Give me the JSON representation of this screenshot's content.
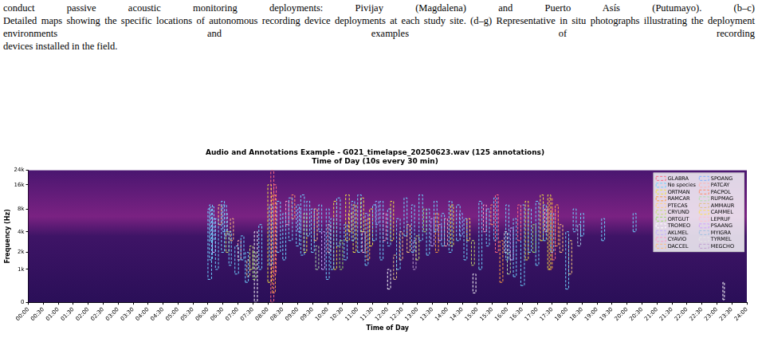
{
  "caption": [
    "conduct passive acoustic monitoring deployments: Pivijay (Magdalena) and Puerto Asís (Putumayo). (b–c)",
    "Detailed maps showing the specific locations of autonomous recording device deployments at each study site. (d–g) Representative in situ photographs illustrating the deployment environments and examples of recording",
    "devices installed in the field."
  ],
  "chart_data": {
    "type": "spectrogram",
    "title": "Audio and Annotations Example - G021_timelapse_20250623.wav (125 annotations)",
    "subtitle": "Time of Day (10s every 30 min)",
    "xlabel": "Time of Day",
    "ylabel": "Frequency (Hz)",
    "xlim": [
      0,
      24
    ],
    "xticks": [
      {
        "value": 0,
        "label": "00:00"
      },
      {
        "value": 0.5,
        "label": "00:30"
      },
      {
        "value": 1,
        "label": "01:00"
      },
      {
        "value": 1.5,
        "label": "01:30"
      },
      {
        "value": 2,
        "label": "02:00"
      },
      {
        "value": 2.5,
        "label": "02:30"
      },
      {
        "value": 3,
        "label": "03:00"
      },
      {
        "value": 3.5,
        "label": "03:30"
      },
      {
        "value": 4,
        "label": "04:00"
      },
      {
        "value": 4.5,
        "label": "04:30"
      },
      {
        "value": 5,
        "label": "05:00"
      },
      {
        "value": 5.5,
        "label": "05:30"
      },
      {
        "value": 6,
        "label": "06:00"
      },
      {
        "value": 6.5,
        "label": "06:30"
      },
      {
        "value": 7,
        "label": "07:00"
      },
      {
        "value": 7.5,
        "label": "07:30"
      },
      {
        "value": 8,
        "label": "08:00"
      },
      {
        "value": 8.5,
        "label": "08:30"
      },
      {
        "value": 9,
        "label": "09:00"
      },
      {
        "value": 9.5,
        "label": "09:30"
      },
      {
        "value": 10,
        "label": "10:00"
      },
      {
        "value": 10.5,
        "label": "10:30"
      },
      {
        "value": 11,
        "label": "11:00"
      },
      {
        "value": 11.5,
        "label": "11:30"
      },
      {
        "value": 12,
        "label": "12:00"
      },
      {
        "value": 12.5,
        "label": "12:30"
      },
      {
        "value": 13,
        "label": "13:00"
      },
      {
        "value": 13.5,
        "label": "13:30"
      },
      {
        "value": 14,
        "label": "14:00"
      },
      {
        "value": 14.5,
        "label": "14:30"
      },
      {
        "value": 15,
        "label": "15:00"
      },
      {
        "value": 15.5,
        "label": "15:30"
      },
      {
        "value": 16,
        "label": "16:00"
      },
      {
        "value": 16.5,
        "label": "16:30"
      },
      {
        "value": 17,
        "label": "17:00"
      },
      {
        "value": 17.5,
        "label": "17:30"
      },
      {
        "value": 18,
        "label": "18:00"
      },
      {
        "value": 18.5,
        "label": "18:30"
      },
      {
        "value": 19,
        "label": "19:00"
      },
      {
        "value": 19.5,
        "label": "19:30"
      },
      {
        "value": 20,
        "label": "20:00"
      },
      {
        "value": 20.5,
        "label": "20:30"
      },
      {
        "value": 21,
        "label": "21:00"
      },
      {
        "value": 21.5,
        "label": "21:30"
      },
      {
        "value": 22,
        "label": "22:00"
      },
      {
        "value": 22.5,
        "label": "22:30"
      },
      {
        "value": 23,
        "label": "23:00"
      },
      {
        "value": 23.5,
        "label": "23:30"
      },
      {
        "value": 24,
        "label": "24:00"
      }
    ],
    "ylim": [
      0,
      24000
    ],
    "yticks": [
      0,
      {
        "value": 1000,
        "label": "1k"
      },
      {
        "value": 2000,
        "label": "2k"
      },
      {
        "value": 4000,
        "label": "4k"
      },
      {
        "value": 8000,
        "label": "8k"
      },
      {
        "value": 16000,
        "label": "16k"
      },
      {
        "value": 24000,
        "label": "24k"
      }
    ],
    "log": "y",
    "grid": false,
    "legend": "upper right",
    "line_style": "dashed",
    "series": [
      {
        "name": "GLABRA",
        "color": "#ff6b81",
        "boxes": [
          [
            8.1,
            8.2,
            0,
            24000
          ],
          [
            8.2,
            8.28,
            800,
            16000
          ],
          [
            15.6,
            15.7,
            2000,
            12000
          ],
          [
            16.35,
            16.45,
            3000,
            9000
          ],
          [
            17.5,
            17.6,
            1500,
            8000
          ]
        ]
      },
      {
        "name": "No species",
        "color": "#6fd3ff",
        "boxes": [
          [
            6.0,
            6.12,
            600,
            8000
          ],
          [
            6.05,
            6.15,
            1500,
            9000
          ],
          [
            6.08,
            6.2,
            3000,
            8500
          ],
          [
            6.25,
            6.35,
            1000,
            6000
          ],
          [
            6.45,
            6.55,
            2000,
            10000
          ],
          [
            6.5,
            6.62,
            4000,
            9000
          ],
          [
            6.7,
            6.78,
            1200,
            4000
          ],
          [
            6.9,
            7.02,
            800,
            2500
          ],
          [
            7.1,
            7.2,
            1500,
            3500
          ],
          [
            7.25,
            7.35,
            500,
            2000
          ],
          [
            7.7,
            7.8,
            1000,
            5000
          ],
          [
            8.05,
            8.15,
            1200,
            9000
          ],
          [
            8.3,
            8.42,
            2000,
            10000
          ],
          [
            8.5,
            8.6,
            1500,
            7000
          ],
          [
            8.7,
            8.82,
            3000,
            11000
          ],
          [
            8.95,
            9.05,
            2500,
            9000
          ],
          [
            9.1,
            9.22,
            1800,
            12000
          ],
          [
            9.3,
            9.4,
            3500,
            10000
          ],
          [
            9.45,
            9.55,
            2000,
            8000
          ],
          [
            9.7,
            9.8,
            4000,
            9000
          ],
          [
            9.95,
            10.05,
            600,
            8000
          ],
          [
            10.1,
            10.2,
            1000,
            6000
          ],
          [
            10.3,
            10.42,
            2500,
            11000
          ],
          [
            10.55,
            10.65,
            1500,
            5000
          ],
          [
            10.8,
            10.9,
            3000,
            10000
          ],
          [
            11.0,
            11.12,
            2000,
            12000
          ],
          [
            11.25,
            11.35,
            1200,
            7000
          ],
          [
            11.5,
            11.62,
            3000,
            9000
          ],
          [
            11.75,
            11.85,
            1500,
            10000
          ],
          [
            12.0,
            12.1,
            2500,
            8000
          ],
          [
            12.3,
            12.42,
            1000,
            6000
          ],
          [
            12.55,
            12.65,
            3500,
            11000
          ],
          [
            12.8,
            12.9,
            2000,
            9000
          ],
          [
            13.05,
            13.17,
            3000,
            12000
          ],
          [
            13.3,
            13.4,
            1800,
            8000
          ],
          [
            13.55,
            13.65,
            4000,
            10000
          ],
          [
            13.8,
            13.9,
            2500,
            7000
          ],
          [
            14.05,
            14.15,
            2000,
            10000
          ],
          [
            14.3,
            14.42,
            3000,
            9000
          ],
          [
            14.55,
            14.65,
            1500,
            6000
          ],
          [
            15.05,
            15.15,
            1000,
            10000
          ],
          [
            15.3,
            15.4,
            2500,
            8000
          ],
          [
            15.55,
            15.65,
            3000,
            11000
          ],
          [
            15.95,
            16.05,
            1500,
            9000
          ],
          [
            16.2,
            16.3,
            700,
            6000
          ],
          [
            16.45,
            16.57,
            400,
            9000
          ],
          [
            16.7,
            16.8,
            2000,
            8000
          ],
          [
            16.95,
            17.05,
            1200,
            10000
          ],
          [
            17.2,
            17.3,
            3000,
            9000
          ],
          [
            17.45,
            17.55,
            2000,
            7000
          ],
          [
            17.95,
            18.05,
            300,
            4000
          ],
          [
            18.2,
            18.3,
            4000,
            8000
          ],
          [
            18.45,
            18.55,
            3500,
            7000
          ],
          [
            19.15,
            19.25,
            3000,
            6000
          ],
          [
            20.2,
            20.3,
            4000,
            7000
          ]
        ]
      },
      {
        "name": "ORTMAN",
        "color": "#f0e442",
        "boxes": [
          [
            8.0,
            8.12,
            500,
            16000
          ],
          [
            9.2,
            9.3,
            2000,
            7000
          ],
          [
            10.2,
            10.3,
            1000,
            10000
          ],
          [
            10.6,
            10.72,
            3000,
            12000
          ],
          [
            10.85,
            10.95,
            2000,
            9000
          ],
          [
            11.1,
            11.2,
            4000,
            11000
          ],
          [
            11.4,
            11.5,
            2500,
            8000
          ],
          [
            12.1,
            12.2,
            3000,
            10000
          ],
          [
            14.1,
            14.2,
            2500,
            9000
          ],
          [
            16.6,
            16.7,
            1500,
            10000
          ],
          [
            17.1,
            17.2,
            3000,
            12000
          ],
          [
            17.35,
            17.45,
            1000,
            12000
          ]
        ]
      },
      {
        "name": "RAMCAR",
        "color": "#ffa040",
        "boxes": [
          [
            8.15,
            8.25,
            200,
            12000
          ],
          [
            11.3,
            11.4,
            1500,
            6000
          ],
          [
            13.6,
            13.7,
            2000,
            7000
          ],
          [
            15.75,
            15.85,
            500,
            3000
          ],
          [
            17.4,
            17.5,
            1000,
            11000
          ],
          [
            17.6,
            17.7,
            2500,
            9000
          ]
        ]
      },
      {
        "name": "PTECAS",
        "color": "#ffd27f",
        "boxes": [
          [
            6.35,
            6.45,
            5000,
            9000
          ],
          [
            9.55,
            9.65,
            3000,
            8000
          ],
          [
            12.65,
            12.75,
            2000,
            5000
          ],
          [
            18.05,
            18.15,
            800,
            3000
          ]
        ]
      },
      {
        "name": "CRYUND",
        "color": "#c8e06e",
        "boxes": [
          [
            6.6,
            6.7,
            2000,
            4000
          ],
          [
            7.4,
            7.5,
            1000,
            2500
          ],
          [
            12.95,
            13.05,
            1500,
            3500
          ],
          [
            14.8,
            14.9,
            1200,
            3000
          ]
        ]
      },
      {
        "name": "ORTGUT",
        "color": "#9edc6a",
        "boxes": [
          [
            7.5,
            7.6,
            600,
            2000
          ],
          [
            10.4,
            10.5,
            1000,
            3000
          ],
          [
            13.2,
            13.3,
            4000,
            8000
          ],
          [
            16.85,
            16.95,
            2000,
            5000
          ]
        ]
      },
      {
        "name": "TROMEO",
        "color": "#ffffff",
        "boxes": [
          [
            7.55,
            7.65,
            0,
            4000
          ],
          [
            12.0,
            12.1,
            300,
            1000
          ],
          [
            14.85,
            14.95,
            200,
            800
          ],
          [
            23.2,
            23.25,
            50,
            500
          ]
        ]
      },
      {
        "name": "AKLMEL",
        "color": "#c5b0ff",
        "boxes": [
          [
            6.15,
            6.25,
            2000,
            6000
          ],
          [
            9.8,
            9.9,
            1000,
            4000
          ],
          [
            13.45,
            13.55,
            2500,
            6000
          ],
          [
            16.1,
            16.2,
            1500,
            4500
          ]
        ]
      },
      {
        "name": "CYAVIO",
        "color": "#ff9ec7",
        "boxes": [
          [
            8.6,
            8.7,
            5000,
            10000
          ],
          [
            11.85,
            11.95,
            3000,
            7000
          ],
          [
            15.2,
            15.3,
            4000,
            9000
          ]
        ]
      },
      {
        "name": "DACCEL",
        "color": "#ffbe7d",
        "boxes": [
          [
            6.75,
            6.85,
            3000,
            6000
          ],
          [
            12.4,
            12.5,
            1500,
            4000
          ],
          [
            17.75,
            17.85,
            2000,
            5000
          ]
        ]
      },
      {
        "name": "SPOANG",
        "color": "#7fb2ff",
        "boxes": [
          [
            9.0,
            9.1,
            4000,
            8000
          ],
          [
            11.6,
            11.7,
            5000,
            10000
          ],
          [
            14.4,
            14.5,
            3500,
            7000
          ]
        ]
      },
      {
        "name": "PATCAY",
        "color": "#ffb3b3",
        "boxes": [
          [
            7.0,
            7.1,
            1500,
            3000
          ],
          [
            10.0,
            10.1,
            2000,
            5000
          ],
          [
            13.9,
            14.0,
            2500,
            6000
          ]
        ]
      },
      {
        "name": "PACPOL",
        "color": "#ff8c66",
        "boxes": [
          [
            8.8,
            8.9,
            6000,
            12000
          ],
          [
            15.45,
            15.55,
            5000,
            9000
          ]
        ]
      },
      {
        "name": "RUPMAG",
        "color": "#b0e0a8",
        "boxes": [
          [
            9.6,
            9.7,
            1000,
            2500
          ],
          [
            16.0,
            16.1,
            800,
            2000
          ]
        ]
      },
      {
        "name": "AMMAUR",
        "color": "#e0c080",
        "boxes": [
          [
            7.3,
            7.4,
            700,
            1500
          ],
          [
            12.2,
            12.3,
            600,
            1800
          ]
        ]
      },
      {
        "name": "CAMMEL",
        "color": "#ffdd55",
        "boxes": [
          [
            10.7,
            10.8,
            4000,
            7000
          ],
          [
            14.65,
            14.75,
            3000,
            6000
          ]
        ]
      },
      {
        "name": "LEPRUF",
        "color": "#ffc0cb",
        "boxes": [
          [
            11.15,
            11.25,
            2000,
            4000
          ],
          [
            17.25,
            17.35,
            4000,
            8000
          ]
        ]
      },
      {
        "name": "PSAANG",
        "color": "#d0a0ff",
        "boxes": [
          [
            13.7,
            13.8,
            3000,
            5000
          ]
        ]
      },
      {
        "name": "MYIGRA",
        "color": "#a0c0e0",
        "boxes": [
          [
            6.55,
            6.65,
            3500,
            7000
          ],
          [
            18.35,
            18.45,
            2500,
            5000
          ]
        ]
      },
      {
        "name": "TYRMEL",
        "color": "#e6e6e6",
        "boxes": [
          [
            15.9,
            16.0,
            2000,
            4000
          ]
        ]
      },
      {
        "name": "MEGCHO",
        "color": "#c0a0d0",
        "boxes": [
          [
            12.85,
            12.95,
            1000,
            3000
          ]
        ]
      }
    ]
  }
}
